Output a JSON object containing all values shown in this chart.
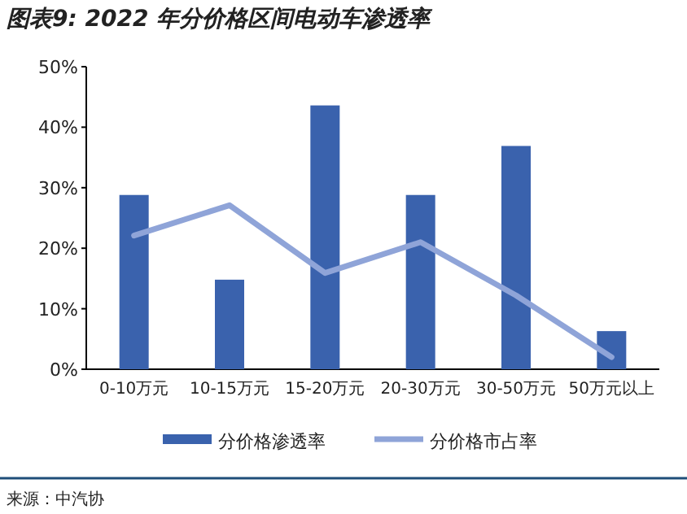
{
  "chart_data": {
    "type": "bar",
    "title": "图表9: 2022 年分价格区间电动车渗透率",
    "categories": [
      "0-10万元",
      "10-15万元",
      "15-20万元",
      "20-30万元",
      "30-50万元",
      "50万元以上"
    ],
    "series": [
      {
        "name": "分价格渗透率",
        "color": "#3a62ad",
        "values": [
          28.8,
          14.8,
          43.6,
          28.8,
          36.9,
          6.3
        ]
      },
      {
        "name": "分价格市占率",
        "type": "line",
        "color": "#8fa4d8",
        "values": [
          22.1,
          27.1,
          15.9,
          21.0,
          12.2,
          2.0
        ]
      }
    ],
    "ylim": [
      0,
      50
    ],
    "yticks": [
      {
        "value": 0,
        "label": "0%"
      },
      {
        "value": 10,
        "label": "10%"
      },
      {
        "value": 20,
        "label": "20%"
      },
      {
        "value": 30,
        "label": "30%"
      },
      {
        "value": 40,
        "label": "40%"
      },
      {
        "value": 50,
        "label": "50%"
      }
    ],
    "grid": false,
    "legend": "bottom",
    "marker": "none",
    "annotations": [
      "来源：中汽协"
    ]
  }
}
